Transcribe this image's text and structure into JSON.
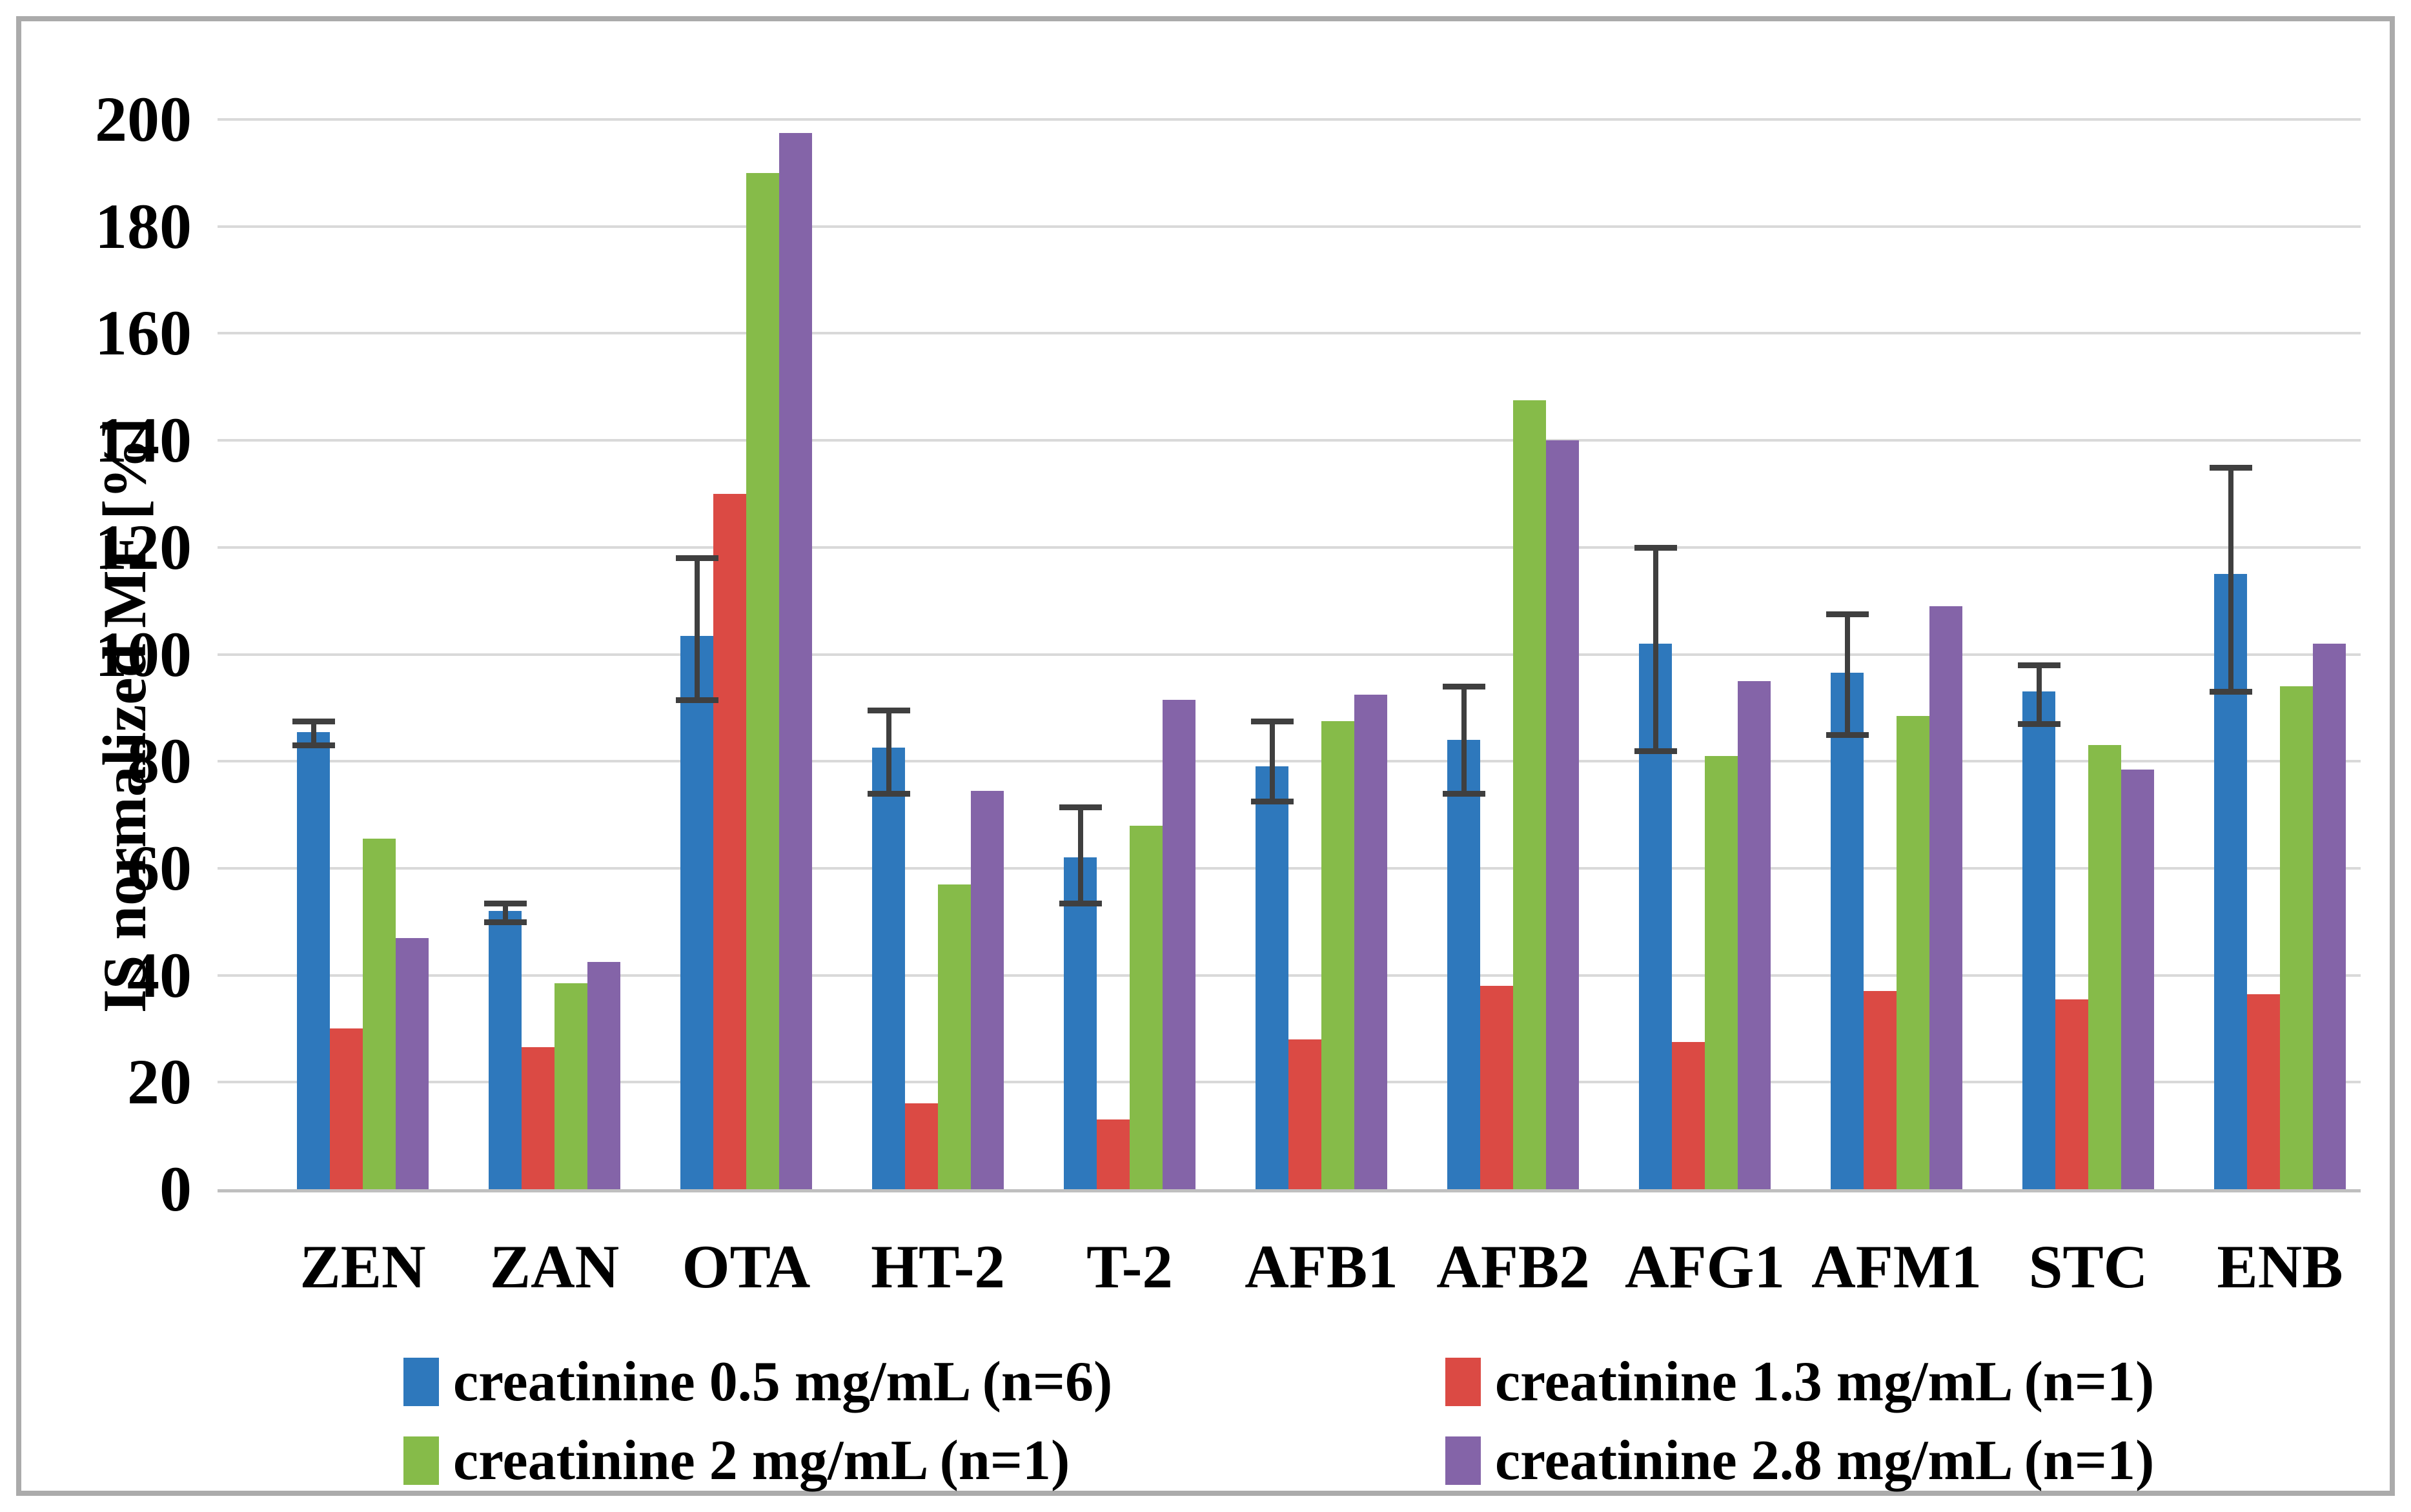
{
  "figure": {
    "border_color": "#ababab",
    "background": "#ffffff"
  },
  "chart_data": {
    "type": "bar",
    "title": "",
    "xlabel": "",
    "ylabel": "IS normalized MF [%]",
    "ylim": [
      0,
      200
    ],
    "yticks": [
      0,
      20,
      40,
      60,
      80,
      100,
      120,
      140,
      160,
      180,
      200
    ],
    "grid": "horizontal",
    "gridline_color": "#d9d9d9",
    "axis_line_color": "#bfbfbf",
    "error_bar_color": "#3f3f3f",
    "legend_position": "bottom",
    "categories": [
      "ZEN",
      "ZAN",
      "OTA",
      "HT-2",
      "T-2",
      "AFB1",
      "AFB2",
      "AFG1",
      "AFM1",
      "STC",
      "ENB"
    ],
    "series": [
      {
        "name": "creatinine 0.5 mg/mL (n=6)",
        "color": "#2e78bc",
        "values": [
          85.5,
          52,
          103.5,
          82.5,
          62,
          79,
          84,
          102,
          96.5,
          93,
          115
        ],
        "error_low": [
          83,
          50,
          91.5,
          74,
          53.5,
          72.5,
          74,
          82,
          85,
          87,
          93
        ],
        "error_high": [
          87.5,
          53.5,
          118,
          89.5,
          71.5,
          87.5,
          94,
          120,
          107.5,
          98,
          135
        ]
      },
      {
        "name": "creatinine 1.3 mg/mL (n=1)",
        "color": "#db4a44",
        "values": [
          30,
          26.5,
          130,
          16,
          13,
          28,
          38,
          27.5,
          37,
          35.5,
          36.5
        ]
      },
      {
        "name": "creatinine 2 mg/mL (n=1)",
        "color": "#86bb49",
        "values": [
          65.5,
          38.5,
          190,
          57,
          68,
          87.5,
          147.5,
          81,
          88.5,
          83,
          94
        ]
      },
      {
        "name": "creatinine 2.8 mg/mL (n=1)",
        "color": "#8464a8",
        "values": [
          47,
          42.5,
          197.5,
          74.5,
          91.5,
          92.5,
          140,
          95,
          109,
          78.5,
          102
        ]
      }
    ]
  }
}
